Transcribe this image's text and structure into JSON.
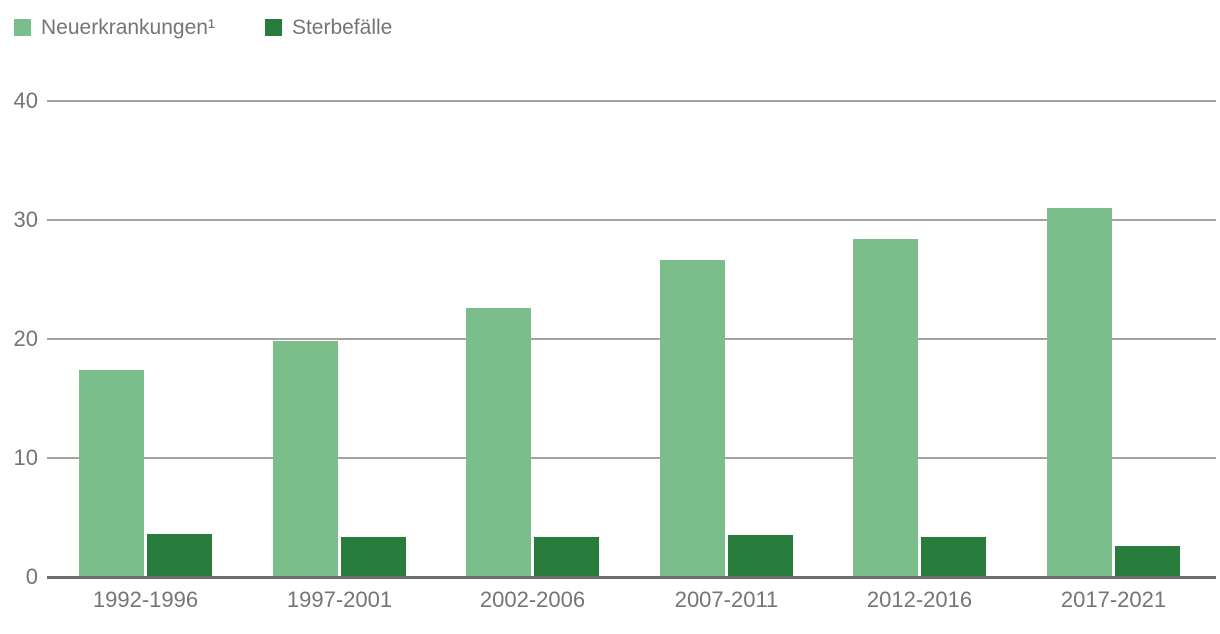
{
  "chart_data": {
    "type": "bar",
    "title": "",
    "xlabel": "",
    "ylabel": "",
    "categories": [
      "1992-1996",
      "1997-2001",
      "2002-2006",
      "2007-2011",
      "2012-2016",
      "2017-2021"
    ],
    "series": [
      {
        "name": "Neuerkrankungen¹",
        "color": "#7CBD8C",
        "values": [
          17.4,
          19.8,
          22.6,
          26.6,
          28.4,
          31.0
        ]
      },
      {
        "name": "Sterbefälle",
        "color": "#287D3C",
        "values": [
          3.6,
          3.4,
          3.4,
          3.5,
          3.4,
          2.6
        ]
      }
    ],
    "ylim": [
      0,
      40
    ],
    "yticks": [
      0,
      10,
      20,
      30,
      40
    ],
    "grid": true,
    "legend_position": "top-left"
  },
  "colors": {
    "series_light_green": "#7CBD8C",
    "series_dark_green": "#287D3C",
    "axis_text": "#757575",
    "gridline": "#a3a3a3",
    "baseline": "#6e6e6e",
    "background": "#ffffff"
  }
}
